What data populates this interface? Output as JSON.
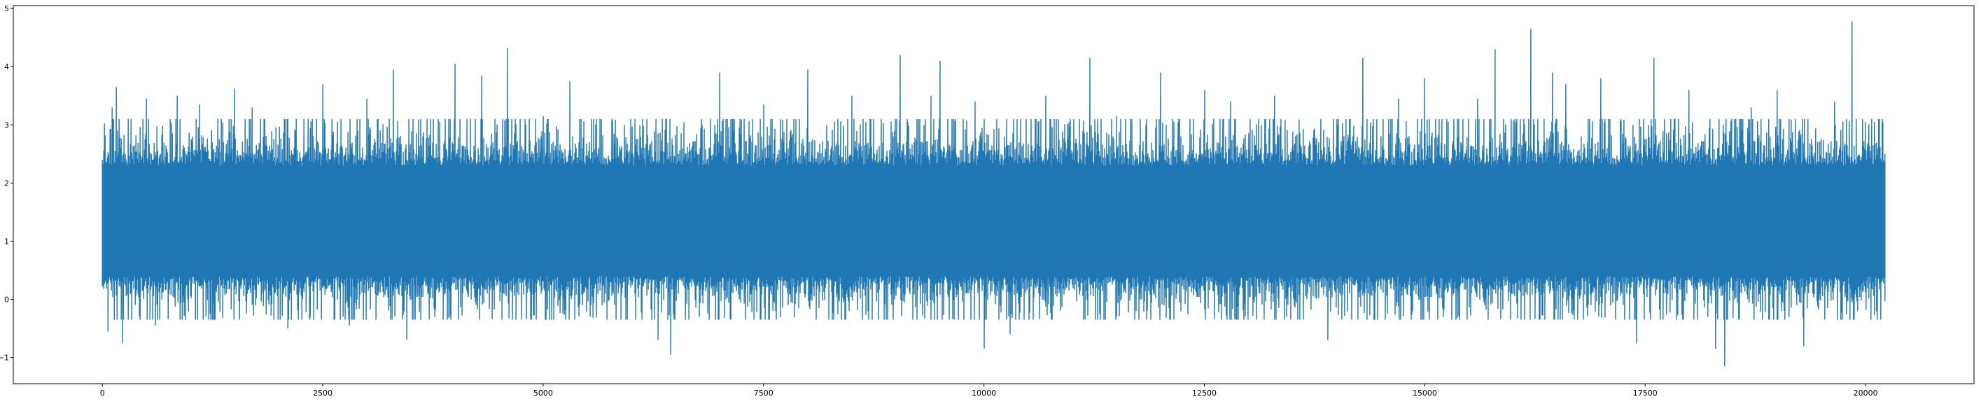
{
  "chart_data": {
    "type": "line",
    "title": "",
    "xlabel": "",
    "ylabel": "",
    "xlim": [
      -1010,
      21230
    ],
    "ylim": [
      -1.45,
      5.05
    ],
    "x_ticks": [
      0,
      2500,
      5000,
      7500,
      10000,
      12500,
      15000,
      17500,
      20000
    ],
    "y_ticks": [
      -1,
      0,
      1,
      2,
      3,
      4,
      5
    ],
    "grid": false,
    "legend": "none",
    "series": [
      {
        "color": "#1f77b4",
        "n_points": 20220,
        "baseline": 1.35,
        "band_typical": [
          0.25,
          2.5
        ],
        "spikes": [
          [
            0,
            2.4
          ],
          [
            60,
            -0.55
          ],
          [
            110,
            3.3
          ],
          [
            160,
            3.65
          ],
          [
            230,
            -0.75
          ],
          [
            500,
            3.45
          ],
          [
            600,
            -0.45
          ],
          [
            850,
            3.5
          ],
          [
            1100,
            3.35
          ],
          [
            1500,
            3.62
          ],
          [
            1700,
            3.3
          ],
          [
            2100,
            -0.5
          ],
          [
            2500,
            3.7
          ],
          [
            2800,
            -0.45
          ],
          [
            3000,
            3.45
          ],
          [
            3300,
            3.95
          ],
          [
            3450,
            -0.7
          ],
          [
            4000,
            4.05
          ],
          [
            4300,
            3.85
          ],
          [
            4600,
            4.32
          ],
          [
            5000,
            3.15
          ],
          [
            5300,
            3.75
          ],
          [
            5600,
            3.0
          ],
          [
            6300,
            -0.7
          ],
          [
            6450,
            -0.95
          ],
          [
            6800,
            3.0
          ],
          [
            7000,
            3.9
          ],
          [
            7500,
            3.35
          ],
          [
            8000,
            3.95
          ],
          [
            8500,
            3.5
          ],
          [
            9050,
            4.2
          ],
          [
            9400,
            3.5
          ],
          [
            9500,
            4.1
          ],
          [
            9900,
            3.4
          ],
          [
            10000,
            -0.85
          ],
          [
            10300,
            -0.6
          ],
          [
            10700,
            3.5
          ],
          [
            11200,
            4.15
          ],
          [
            11500,
            3.15
          ],
          [
            12000,
            3.9
          ],
          [
            12500,
            3.6
          ],
          [
            12800,
            3.4
          ],
          [
            13300,
            3.5
          ],
          [
            13900,
            -0.7
          ],
          [
            14300,
            4.15
          ],
          [
            14700,
            3.45
          ],
          [
            15000,
            3.8
          ],
          [
            15600,
            3.45
          ],
          [
            15800,
            4.3
          ],
          [
            16200,
            4.65
          ],
          [
            16450,
            3.9
          ],
          [
            16600,
            3.7
          ],
          [
            17000,
            3.8
          ],
          [
            17400,
            -0.75
          ],
          [
            17600,
            4.15
          ],
          [
            18000,
            3.6
          ],
          [
            18300,
            -0.85
          ],
          [
            18400,
            -1.15
          ],
          [
            18700,
            3.3
          ],
          [
            19000,
            3.6
          ],
          [
            19300,
            -0.8
          ],
          [
            19650,
            3.4
          ],
          [
            19850,
            4.78
          ],
          [
            20000,
            3.05
          ],
          [
            20200,
            3.05
          ]
        ]
      }
    ]
  }
}
